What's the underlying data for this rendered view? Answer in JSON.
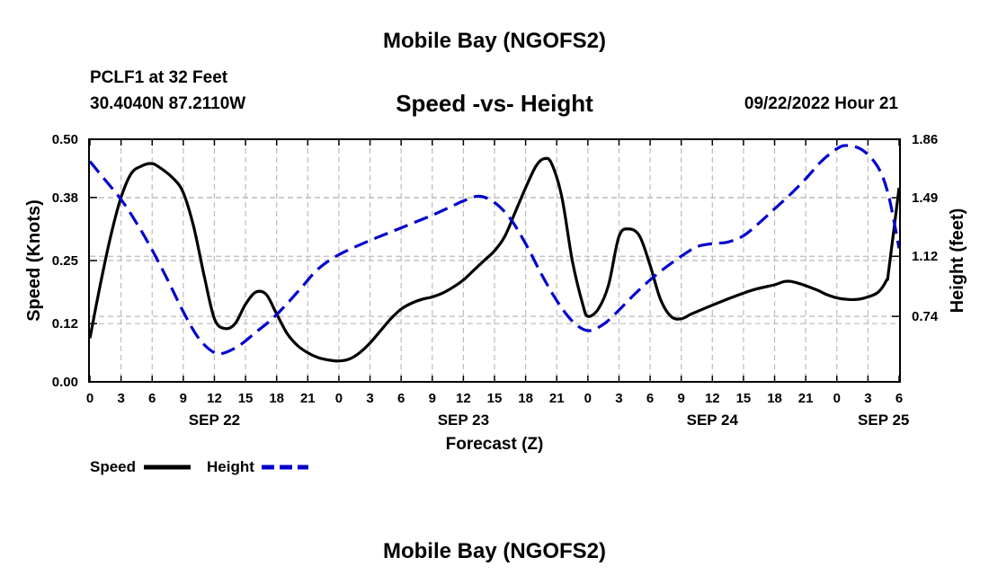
{
  "page": {
    "main_title": "Mobile Bay (NGOFS2)",
    "station": "PCLF1 at 32 Feet",
    "coords": "30.4040N  87.2110W",
    "chart_title": "Speed -vs- Height",
    "timestamp": "09/22/2022 Hour 21",
    "footer_title": "Mobile Bay (NGOFS2)"
  },
  "colors": {
    "speed": "#000000",
    "height": "#0000cc",
    "grid": "#bbbbbb"
  },
  "chart_data": {
    "type": "line",
    "title": "Speed -vs- Height",
    "xlabel": "Forecast (Z)",
    "ylabel": "Speed (Knots)",
    "y2label": "Height (feet)",
    "xlim": [
      0,
      78
    ],
    "ylim": [
      0,
      0.5
    ],
    "y2lim": [
      0.326,
      1.86
    ],
    "grid": true,
    "legend_position": "bottom-left",
    "x_tick_positions": [
      0,
      3,
      6,
      9,
      12,
      15,
      18,
      21,
      24,
      27,
      30,
      33,
      36,
      39,
      42,
      45,
      48,
      51,
      54,
      57,
      60,
      63,
      66,
      69,
      72,
      75,
      78
    ],
    "x_tick_labels": [
      "0",
      "3",
      "6",
      "9",
      "12",
      "15",
      "18",
      "21",
      "0",
      "3",
      "6",
      "9",
      "12",
      "15",
      "18",
      "21",
      "0",
      "3",
      "6",
      "9",
      "12",
      "15",
      "18",
      "21",
      "0",
      "3",
      "6"
    ],
    "date_labels": [
      {
        "x": 12,
        "label": "SEP 22"
      },
      {
        "x": 36,
        "label": "SEP 23"
      },
      {
        "x": 60,
        "label": "SEP 24"
      },
      {
        "x": 76.5,
        "label": "SEP 25"
      }
    ],
    "y_ticks": [
      0.0,
      0.12,
      0.25,
      0.38,
      0.5
    ],
    "y_tick_labels": [
      "0.00",
      "0.12",
      "0.25",
      "0.38",
      "0.50"
    ],
    "y2_ticks": [
      0.74,
      1.12,
      1.49,
      1.86
    ],
    "y2_tick_labels": [
      "0.74",
      "1.12",
      "1.49",
      "1.86"
    ],
    "legend": [
      {
        "name": "Speed"
      },
      {
        "name": "Height"
      }
    ],
    "series": [
      {
        "name": "Speed",
        "axis": "left",
        "points": [
          [
            0,
            0.09
          ],
          [
            1,
            0.2
          ],
          [
            2,
            0.3
          ],
          [
            3,
            0.38
          ],
          [
            4,
            0.43
          ],
          [
            5,
            0.445
          ],
          [
            5.8,
            0.45
          ],
          [
            6.5,
            0.445
          ],
          [
            8,
            0.42
          ],
          [
            9,
            0.39
          ],
          [
            10,
            0.32
          ],
          [
            11,
            0.22
          ],
          [
            12,
            0.13
          ],
          [
            13,
            0.11
          ],
          [
            14,
            0.12
          ],
          [
            15,
            0.16
          ],
          [
            16,
            0.185
          ],
          [
            17,
            0.18
          ],
          [
            18,
            0.14
          ],
          [
            19,
            0.1
          ],
          [
            20,
            0.075
          ],
          [
            21,
            0.06
          ],
          [
            22,
            0.05
          ],
          [
            23,
            0.045
          ],
          [
            24,
            0.043
          ],
          [
            25,
            0.047
          ],
          [
            26,
            0.06
          ],
          [
            27,
            0.08
          ],
          [
            28,
            0.105
          ],
          [
            29,
            0.13
          ],
          [
            30,
            0.15
          ],
          [
            31,
            0.162
          ],
          [
            32,
            0.17
          ],
          [
            33,
            0.175
          ],
          [
            34,
            0.183
          ],
          [
            35,
            0.195
          ],
          [
            36,
            0.21
          ],
          [
            37,
            0.23
          ],
          [
            38,
            0.25
          ],
          [
            39,
            0.27
          ],
          [
            40,
            0.3
          ],
          [
            41,
            0.35
          ],
          [
            42,
            0.4
          ],
          [
            43,
            0.445
          ],
          [
            43.8,
            0.46
          ],
          [
            44.5,
            0.45
          ],
          [
            45.5,
            0.38
          ],
          [
            46.5,
            0.25
          ],
          [
            47.5,
            0.16
          ],
          [
            48,
            0.135
          ],
          [
            49,
            0.15
          ],
          [
            50,
            0.2
          ],
          [
            51,
            0.3
          ],
          [
            52,
            0.315
          ],
          [
            53,
            0.3
          ],
          [
            54,
            0.24
          ],
          [
            55,
            0.17
          ],
          [
            56,
            0.135
          ],
          [
            57,
            0.13
          ],
          [
            58,
            0.14
          ],
          [
            60,
            0.158
          ],
          [
            62,
            0.175
          ],
          [
            64,
            0.19
          ],
          [
            66,
            0.2
          ],
          [
            67,
            0.207
          ],
          [
            68,
            0.205
          ],
          [
            70,
            0.19
          ],
          [
            71,
            0.18
          ],
          [
            72,
            0.173
          ],
          [
            73,
            0.17
          ],
          [
            74,
            0.17
          ],
          [
            75,
            0.175
          ],
          [
            76,
            0.185
          ],
          [
            76.8,
            0.21
          ],
          [
            77,
            0.23
          ],
          [
            78,
            0.4
          ]
        ]
      },
      {
        "name": "Height",
        "axis": "right",
        "points": [
          [
            0,
            1.72
          ],
          [
            1.5,
            1.6
          ],
          [
            3,
            1.48
          ],
          [
            4.5,
            1.33
          ],
          [
            6,
            1.16
          ],
          [
            7.5,
            0.97
          ],
          [
            9,
            0.77
          ],
          [
            10.5,
            0.6
          ],
          [
            12,
            0.51
          ],
          [
            13,
            0.51
          ],
          [
            14.5,
            0.56
          ],
          [
            16,
            0.64
          ],
          [
            17.5,
            0.72
          ],
          [
            19,
            0.82
          ],
          [
            20.5,
            0.93
          ],
          [
            22,
            1.04
          ],
          [
            24,
            1.13
          ],
          [
            27,
            1.22
          ],
          [
            30,
            1.3
          ],
          [
            33,
            1.38
          ],
          [
            35,
            1.44
          ],
          [
            36,
            1.47
          ],
          [
            37.5,
            1.5
          ],
          [
            39,
            1.46
          ],
          [
            40.5,
            1.36
          ],
          [
            42,
            1.2
          ],
          [
            43.5,
            1.01
          ],
          [
            45,
            0.84
          ],
          [
            46.5,
            0.71
          ],
          [
            48,
            0.65
          ],
          [
            49.5,
            0.69
          ],
          [
            51,
            0.78
          ],
          [
            52.5,
            0.88
          ],
          [
            54,
            0.97
          ],
          [
            55.5,
            1.05
          ],
          [
            57,
            1.12
          ],
          [
            58.5,
            1.18
          ],
          [
            60,
            1.2
          ],
          [
            61.5,
            1.21
          ],
          [
            63,
            1.25
          ],
          [
            64.5,
            1.33
          ],
          [
            66,
            1.42
          ],
          [
            67.5,
            1.51
          ],
          [
            69,
            1.61
          ],
          [
            70.5,
            1.72
          ],
          [
            72,
            1.8
          ],
          [
            73,
            1.82
          ],
          [
            74.5,
            1.79
          ],
          [
            76,
            1.68
          ],
          [
            77,
            1.5
          ],
          [
            78,
            1.17
          ]
        ]
      }
    ]
  }
}
